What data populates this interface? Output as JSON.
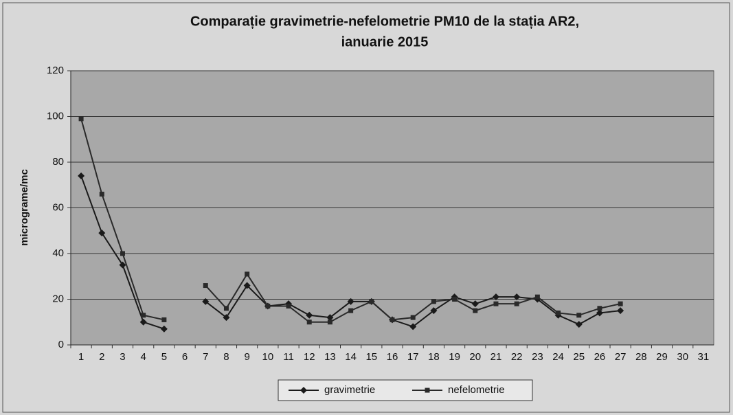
{
  "chart_data": {
    "type": "line",
    "title": [
      "Comparație gravimetrie-nefelometrie PM10 de la stația AR2,",
      "ianuarie 2015"
    ],
    "y_label": "micrograme/mc",
    "categories": [
      "1",
      "2",
      "3",
      "4",
      "5",
      "6",
      "7",
      "8",
      "9",
      "10",
      "11",
      "12",
      "13",
      "14",
      "15",
      "16",
      "17",
      "18",
      "19",
      "20",
      "21",
      "22",
      "23",
      "24",
      "25",
      "26",
      "27",
      "28",
      "29",
      "30",
      "31"
    ],
    "series": [
      {
        "name": "gravimetrie",
        "color": "#1a1a1a",
        "marker": "diamond",
        "values": [
          74,
          49,
          35,
          10,
          7,
          null,
          19,
          12,
          26,
          17,
          18,
          13,
          12,
          19,
          19,
          11,
          8,
          15,
          21,
          18,
          21,
          21,
          20,
          13,
          9,
          14,
          15,
          null,
          null,
          null,
          null
        ]
      },
      {
        "name": "nefelometrie",
        "color": "#2a2a2a",
        "marker": "square",
        "values": [
          99,
          66,
          40,
          13,
          11,
          null,
          26,
          16,
          31,
          17,
          17,
          10,
          10,
          15,
          19,
          11,
          12,
          19,
          20,
          15,
          18,
          18,
          21,
          14,
          13,
          16,
          18,
          null,
          null,
          null,
          null
        ]
      }
    ],
    "ylim": [
      0,
      120
    ],
    "yticks": [
      0,
      20,
      40,
      60,
      80,
      100,
      120
    ],
    "grid": true,
    "legend": "bottom"
  }
}
